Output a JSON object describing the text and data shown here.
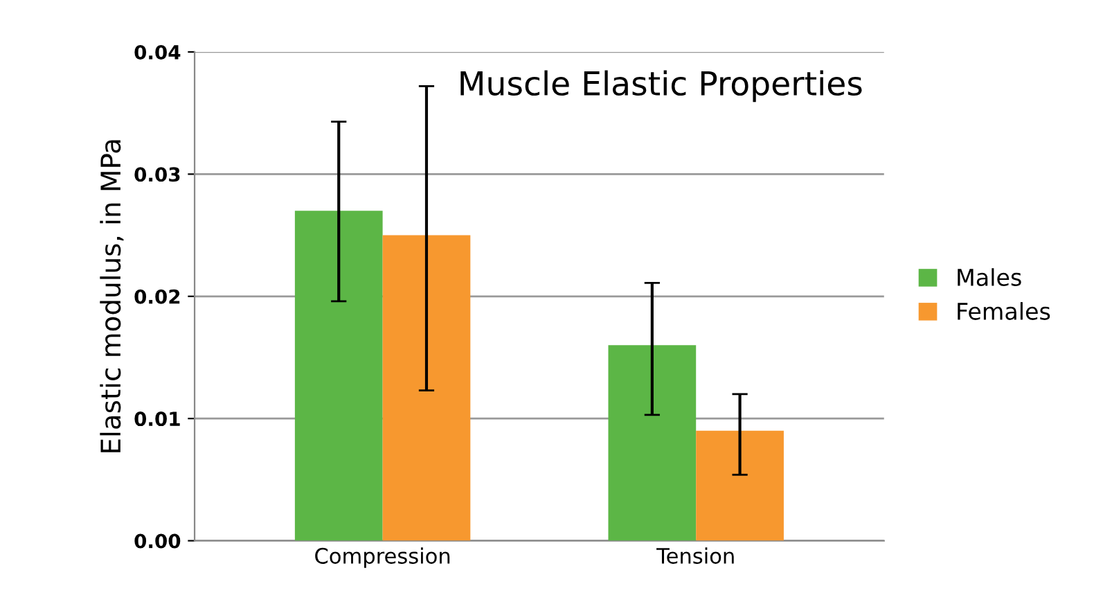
{
  "chart_data": {
    "type": "bar",
    "title": "Muscle Elastic Properties",
    "ylabel": "Elastic modulus, in MPa",
    "categories": [
      "Compression",
      "Tension"
    ],
    "series": [
      {
        "name": "Males",
        "color": "#5cb646",
        "values": [
          0.027,
          0.016
        ],
        "errors": [
          [
            0.0196,
            0.0343
          ],
          [
            0.0103,
            0.0211
          ]
        ]
      },
      {
        "name": "Females",
        "color": "#f7982f",
        "values": [
          0.025,
          0.009
        ],
        "errors": [
          [
            0.0123,
            0.0372
          ],
          [
            0.0054,
            0.012
          ]
        ]
      }
    ],
    "ylim": [
      0,
      0.04
    ],
    "yticks": [
      {
        "value": 0,
        "label": "0.00"
      },
      {
        "value": 0.01,
        "label": "0.01"
      },
      {
        "value": 0.02,
        "label": "0.02"
      },
      {
        "value": 0.03,
        "label": "0.03"
      },
      {
        "value": 0.04,
        "label": "0.04"
      }
    ],
    "grid": "y",
    "legend": "right"
  }
}
